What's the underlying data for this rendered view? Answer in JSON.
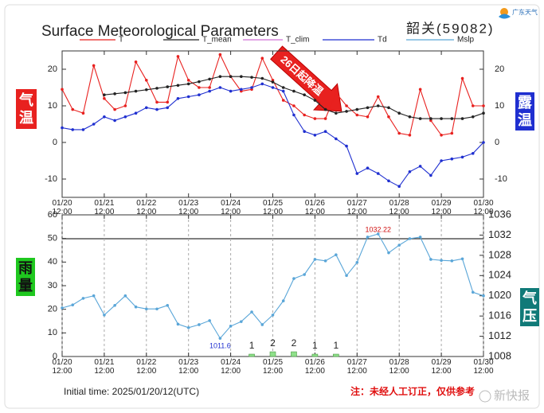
{
  "chart_data": [
    {
      "type": "line",
      "title": "Surface Meteorological Parameters",
      "station": "韶关(59082)",
      "logo": "广东天气",
      "annotation": "26日起降温",
      "ylabel": "气温",
      "y2label": "露温",
      "mirror_y": true,
      "xlim": [
        "01/20 12:00",
        "01/30 12:00"
      ],
      "xticks": [
        "01/20 12:00",
        "01/21 12:00",
        "01/22 12:00",
        "01/23 12:00",
        "01/24 12:00",
        "01/25 12:00",
        "01/26 12:00",
        "01/27 12:00",
        "01/28 12:00",
        "01/29 12:00",
        "01/30 12:00"
      ],
      "ylim": [
        -15,
        25
      ],
      "yticks": [
        -10,
        0,
        10,
        20
      ],
      "x": [
        "01/20 12:00",
        "01/20 18:00",
        "01/21 00:00",
        "01/21 06:00",
        "01/21 12:00",
        "01/21 18:00",
        "01/22 00:00",
        "01/22 06:00",
        "01/22 12:00",
        "01/22 18:00",
        "01/23 00:00",
        "01/23 06:00",
        "01/23 12:00",
        "01/23 18:00",
        "01/24 00:00",
        "01/24 06:00",
        "01/24 12:00",
        "01/24 18:00",
        "01/25 00:00",
        "01/25 06:00",
        "01/25 12:00",
        "01/25 18:00",
        "01/26 00:00",
        "01/26 06:00",
        "01/26 12:00",
        "01/26 18:00",
        "01/27 00:00",
        "01/27 06:00",
        "01/27 12:00",
        "01/27 18:00",
        "01/28 00:00",
        "01/28 06:00",
        "01/28 12:00",
        "01/28 18:00",
        "01/29 00:00",
        "01/29 06:00",
        "01/29 12:00",
        "01/29 18:00",
        "01/30 00:00",
        "01/30 06:00",
        "01/30 12:00"
      ],
      "series": [
        {
          "name": "T",
          "color": "#e8211f",
          "values": [
            14.5,
            9,
            8,
            21,
            12,
            9,
            10,
            22,
            17,
            11,
            11,
            23.5,
            17,
            15,
            15,
            24,
            18,
            14,
            14.5,
            23,
            17,
            11.5,
            10,
            7.5,
            6.5,
            6.5,
            13.5,
            10,
            7.5,
            7,
            12.5,
            7,
            2.5,
            2,
            14.5,
            6,
            2,
            2.5,
            17.5,
            10,
            10
          ]
        },
        {
          "name": "T_mean",
          "color": "#222222",
          "values": [
            null,
            null,
            null,
            null,
            13,
            13.3,
            13.6,
            14,
            14.4,
            14.8,
            15.2,
            15.6,
            16,
            16.6,
            17.3,
            18,
            18,
            18,
            17.8,
            17.5,
            16.5,
            15,
            14,
            13,
            11.5,
            9,
            8,
            8.5,
            9,
            9.5,
            10,
            9.5,
            8,
            7,
            6.5,
            6.5,
            6.5,
            6.5,
            6.5,
            7,
            8
          ]
        },
        {
          "name": "T_clim",
          "color": "#d070d8"
        },
        {
          "name": "Td",
          "color": "#1f2fd0",
          "values": [
            4,
            3.5,
            3.5,
            5,
            7,
            6,
            7,
            8,
            9.5,
            9,
            9.5,
            12,
            12.5,
            13,
            14,
            15,
            14,
            14.5,
            15,
            16,
            15,
            14,
            7.5,
            3,
            2,
            3,
            1,
            -1,
            -8.5,
            -7,
            -8.5,
            -10.5,
            -12,
            -8,
            -6.5,
            -9,
            -5,
            -4.5,
            -4,
            -3,
            0
          ]
        }
      ]
    },
    {
      "type": "combo",
      "ylabel": "雨量",
      "y2label": "气压",
      "note": "注：未经人工订正，仅供参考",
      "footer": "Initial time: 2025/01/20/12(UTC)",
      "watermark": "新快报",
      "xgrid": true,
      "xlim": [
        "01/20 12:00",
        "01/30 12:00"
      ],
      "xticks": [
        "01/20 12:00",
        "01/21 12:00",
        "01/22 12:00",
        "01/23 12:00",
        "01/24 12:00",
        "01/25 12:00",
        "01/26 12:00",
        "01/27 12:00",
        "01/28 12:00",
        "01/29 12:00",
        "01/30 12:00"
      ],
      "ylim": [
        0,
        60
      ],
      "yticks": [
        0,
        10,
        20,
        30,
        40,
        50,
        60
      ],
      "y2lim": [
        1008,
        1036
      ],
      "y2ticks": [
        1008,
        1012,
        1016,
        1020,
        1024,
        1028,
        1032,
        1036
      ],
      "x": [
        "01/20 12:00",
        "01/20 18:00",
        "01/21 00:00",
        "01/21 06:00",
        "01/21 12:00",
        "01/21 18:00",
        "01/22 00:00",
        "01/22 06:00",
        "01/22 12:00",
        "01/22 18:00",
        "01/23 00:00",
        "01/23 06:00",
        "01/23 12:00",
        "01/23 18:00",
        "01/24 00:00",
        "01/24 06:00",
        "01/24 12:00",
        "01/24 18:00",
        "01/25 00:00",
        "01/25 06:00",
        "01/25 12:00",
        "01/25 18:00",
        "01/26 00:00",
        "01/26 06:00",
        "01/26 12:00",
        "01/26 18:00",
        "01/27 00:00",
        "01/27 06:00",
        "01/27 12:00",
        "01/27 18:00",
        "01/28 00:00",
        "01/28 06:00",
        "01/28 12:00",
        "01/28 18:00",
        "01/29 00:00",
        "01/29 06:00",
        "01/29 12:00",
        "01/29 18:00",
        "01/30 00:00",
        "01/30 06:00",
        "01/30 12:00"
      ],
      "series": [
        {
          "type": "bar",
          "color": "#8fe08a",
          "labels": true,
          "x": [
            "01/25 00:00",
            "01/25 12:00",
            "01/26 00:00",
            "01/26 12:00",
            "01/27 00:00"
          ],
          "values": [
            1,
            2,
            2,
            1,
            1
          ]
        },
        {
          "type": "line",
          "name": "Mslp",
          "axis": "y2",
          "color": "#5aa6d8",
          "label_extrema": true,
          "values": [
            1017.6,
            1018.2,
            1019.5,
            1020,
            1016.2,
            1018.1,
            1020,
            1017.8,
            1017.4,
            1017.4,
            1018.1,
            1014.4,
            1013.7,
            1014.3,
            1015.1,
            1011.6,
            1014,
            1014.9,
            1016.8,
            1014.3,
            1016.2,
            1019,
            1023.4,
            1024.2,
            1027.2,
            1026.9,
            1028.1,
            1024,
            1026.6,
            1031.6,
            1032.22,
            1028.5,
            1030,
            1031.3,
            1031.6,
            1027.2,
            1027,
            1026.9,
            1027.3,
            1020.7,
            1020
          ]
        }
      ]
    }
  ]
}
